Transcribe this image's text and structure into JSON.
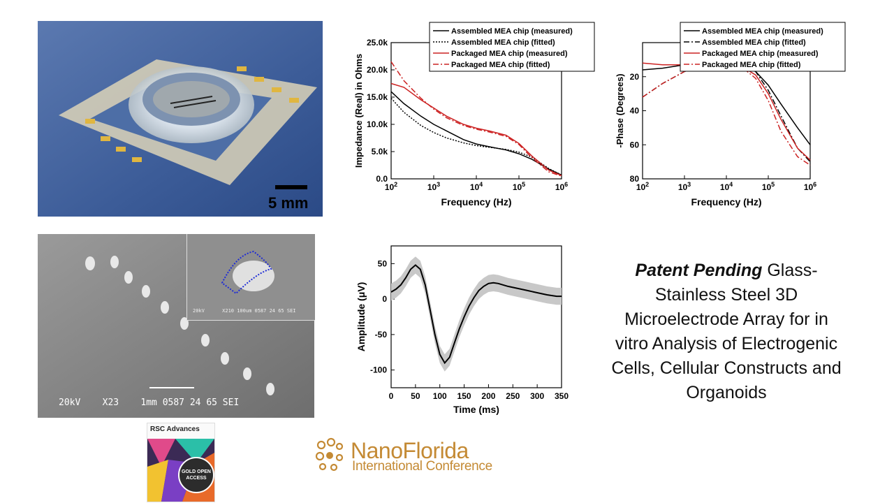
{
  "photo": {
    "scale_label": "5 mm"
  },
  "sem": {
    "main_caption": "20kV    X23    1mm 0587 24 65 SEI",
    "inset_caption": "20kV      X210 100um 0587 24 65 SEI"
  },
  "title": {
    "bold_prefix": "Patent Pending",
    "text": " Glass-Stainless Steel 3D Microelectrode Array for in vitro Analysis of Electrogenic Cells, Cellular Constructs and Organoids"
  },
  "journal": {
    "name": "RSC Advances",
    "badge": "GOLD OPEN ACCESS"
  },
  "conference": {
    "name": "NanoFlorida",
    "subtitle": "International Conference"
  },
  "chart_data": [
    {
      "type": "line",
      "xlabel": "Frequency (Hz)",
      "ylabel": "Impedance (Real) in Ohms",
      "xscale": "log",
      "xlim": [
        100,
        1000000
      ],
      "ylim": [
        0,
        25000
      ],
      "xticks": [
        "10^2",
        "10^3",
        "10^4",
        "10^5",
        "10^6"
      ],
      "yticks": [
        "0.0",
        "5.0k",
        "10.0k",
        "15.0k",
        "20.0k",
        "25.0k"
      ],
      "legend_position": "top",
      "series": [
        {
          "name": "Assembled MEA chip (measured)",
          "color": "#000000",
          "dash": "solid",
          "x": [
            100,
            200,
            500,
            1000,
            2000,
            5000,
            10000,
            20000,
            50000,
            100000,
            200000,
            500000,
            1000000
          ],
          "y": [
            16000,
            13800,
            11500,
            10000,
            8800,
            7200,
            6400,
            5900,
            5300,
            4600,
            3600,
            1800,
            700
          ]
        },
        {
          "name": "Assembled MEA chip (fitted)",
          "color": "#000000",
          "dash": "dot",
          "x": [
            100,
            200,
            500,
            1000,
            2000,
            5000,
            10000,
            20000,
            50000,
            100000,
            200000,
            500000,
            1000000
          ],
          "y": [
            14800,
            12200,
            9800,
            8500,
            7500,
            6600,
            6100,
            5800,
            5400,
            4900,
            4000,
            1900,
            700
          ]
        },
        {
          "name": "Packaged MEA chip (measured)",
          "color": "#cc2222",
          "dash": "solid",
          "x": [
            100,
            200,
            500,
            1000,
            2000,
            5000,
            10000,
            20000,
            50000,
            100000,
            200000,
            500000,
            1000000
          ],
          "y": [
            17500,
            16800,
            14500,
            13000,
            11500,
            10000,
            9300,
            8800,
            8000,
            6500,
            4200,
            1600,
            600
          ]
        },
        {
          "name": "Packaged MEA chip (fitted)",
          "color": "#cc2222",
          "dash": "dashdot",
          "x": [
            100,
            200,
            500,
            1000,
            2000,
            5000,
            10000,
            20000,
            50000,
            100000,
            200000,
            500000,
            1000000
          ],
          "y": [
            21500,
            18000,
            14800,
            12800,
            11200,
            9800,
            9100,
            8600,
            7800,
            6300,
            3900,
            1300,
            500
          ]
        }
      ]
    },
    {
      "type": "line",
      "xlabel": "Frequency (Hz)",
      "ylabel": "-Phase (Degrees)",
      "xscale": "log",
      "xlim": [
        100,
        1000000
      ],
      "ylim": [
        80,
        0
      ],
      "y_inverted": true,
      "xticks": [
        "10^2",
        "10^3",
        "10^4",
        "10^5",
        "10^6"
      ],
      "yticks": [
        "20",
        "40",
        "60",
        "80"
      ],
      "legend_position": "top",
      "series": [
        {
          "name": "Assembled MEA chip (measured)",
          "color": "#000000",
          "dash": "solid",
          "x": [
            100,
            300,
            1000,
            3000,
            10000,
            20000,
            50000,
            100000,
            200000,
            500000,
            1000000
          ],
          "y": [
            16,
            15,
            13,
            12,
            12,
            13,
            17,
            25,
            36,
            50,
            60
          ]
        },
        {
          "name": "Assembled MEA chip (fitted)",
          "color": "#000000",
          "dash": "dashdot",
          "x": [
            100,
            300,
            1000,
            3000,
            10000,
            20000,
            50000,
            100000,
            200000,
            500000,
            1000000
          ],
          "y": [
            32,
            24,
            17,
            13,
            11,
            12,
            17,
            28,
            43,
            62,
            70
          ]
        },
        {
          "name": "Packaged MEA chip (measured)",
          "color": "#cc2222",
          "dash": "solid",
          "x": [
            100,
            300,
            1000,
            3000,
            10000,
            20000,
            50000,
            100000,
            200000,
            500000,
            1000000
          ],
          "y": [
            12,
            13,
            13,
            12,
            12,
            13,
            19,
            30,
            45,
            62,
            69
          ]
        },
        {
          "name": "Packaged MEA chip (fitted)",
          "color": "#cc2222",
          "dash": "dashdot",
          "x": [
            100,
            300,
            1000,
            3000,
            10000,
            20000,
            50000,
            100000,
            200000,
            500000,
            1000000
          ],
          "y": [
            32,
            24,
            17,
            13,
            11,
            13,
            21,
            34,
            52,
            67,
            72
          ]
        }
      ]
    },
    {
      "type": "line",
      "xlabel": "Time (ms)",
      "ylabel": "Amplitude (μV)",
      "xlim": [
        0,
        350
      ],
      "ylim": [
        -125,
        75
      ],
      "xticks": [
        "0",
        "50",
        "100",
        "150",
        "200",
        "250",
        "300",
        "350"
      ],
      "yticks": [
        "-100",
        "-50",
        "0",
        "50"
      ],
      "series": [
        {
          "color": "#000000",
          "x": [
            0,
            10,
            20,
            30,
            40,
            50,
            60,
            70,
            80,
            90,
            100,
            110,
            120,
            130,
            140,
            150,
            160,
            170,
            180,
            190,
            200,
            210,
            220,
            240,
            260,
            280,
            300,
            320,
            340,
            350
          ],
          "y": [
            10,
            14,
            20,
            30,
            42,
            48,
            42,
            20,
            -15,
            -50,
            -78,
            -90,
            -82,
            -62,
            -42,
            -25,
            -10,
            2,
            12,
            18,
            22,
            23,
            22,
            18,
            15,
            12,
            9,
            6,
            4,
            4
          ],
          "band": 12
        }
      ]
    }
  ]
}
